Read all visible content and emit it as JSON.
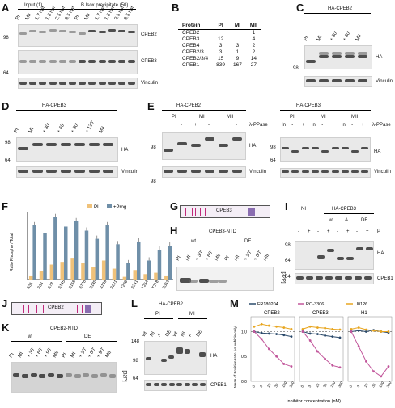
{
  "panels": {
    "A": {
      "label": "A",
      "input_header": "Input (1)",
      "ip_header": "B Isox precipitate (50)",
      "lanes": [
        "PI",
        "MII",
        "1.7 hpf",
        "1.8 hpf",
        "2.5 hpf",
        "3.5 hpf",
        "PI",
        "MII",
        "1.7 hpf",
        "1.8 hpf",
        "2.5 hpf",
        "3.5 hpf"
      ],
      "blots": [
        "CPEB2",
        "CPEB3",
        "Vinculin"
      ],
      "markers": [
        "98",
        "64"
      ]
    },
    "B": {
      "label": "B",
      "columns": [
        "Protein",
        "PI",
        "MI",
        "MII"
      ],
      "rows": [
        [
          "CPEB2",
          "",
          "",
          "1"
        ],
        [
          "CPEB3",
          "12",
          "",
          "4"
        ],
        [
          "CPEB4",
          "3",
          "3",
          "2"
        ],
        [
          "CPEB2/3",
          "3",
          "1",
          "2"
        ],
        [
          "CPEB2/3/4",
          "15",
          "9",
          "14"
        ],
        [
          "CPEB1",
          "839",
          "167",
          "27"
        ]
      ]
    },
    "C": {
      "label": "C",
      "title": "HA-CPEB2",
      "lanes": [
        "PI",
        "MI",
        "+ 30'",
        "+ 60'",
        "MII"
      ],
      "blots": [
        "HA",
        "Vinculin"
      ],
      "markers": [
        "98"
      ]
    },
    "D": {
      "label": "D",
      "title": "HA-CPEB3",
      "lanes": [
        "PI",
        "MI",
        "+ 30'",
        "+ 60'",
        "+ 90'",
        "+ 120'",
        "MII"
      ],
      "blots": [
        "HA",
        "Vinculin"
      ],
      "markers": [
        "98",
        "64"
      ]
    },
    "E": {
      "label": "E",
      "title_left": "HA-CPEB2",
      "title_right": "HA-CPEB3",
      "left_groups": [
        "PI",
        "MI",
        "MII"
      ],
      "right_groups": [
        "PI",
        "MI",
        "MII"
      ],
      "lambda": "λ-PPase",
      "left_signs": [
        "+",
        "-",
        "+",
        "-",
        "+",
        "-"
      ],
      "right_signs": [
        "In",
        "-",
        "+",
        "In",
        "-",
        "+",
        "In",
        "-",
        "+"
      ],
      "blots": [
        "HA",
        "Vinculin"
      ],
      "markers": [
        "98",
        "98",
        "64"
      ]
    },
    "F": {
      "label": "F",
      "legend": [
        "PI",
        "+Prog"
      ],
      "ylabel": "Ratio Phospho / Total",
      "sites": [
        "S31",
        "S33",
        "S78",
        "S145",
        "S158",
        "S178",
        "S185",
        "S189",
        "S221",
        "T238",
        "S241",
        "T254",
        "T278",
        "S353"
      ]
    },
    "G": {
      "label": "G",
      "name": "CPEB3"
    },
    "H": {
      "label": "H",
      "title": "CPEB3-NTD",
      "groups": [
        "wt",
        "DE"
      ],
      "lanes": [
        "PI",
        "MI",
        "+ 30'",
        "+ 60'",
        "MII",
        "PI",
        "MI",
        "+ 30'",
        "+ 60'",
        "MII"
      ],
      "marker": "[32P]"
    },
    "I": {
      "label": "I",
      "groups": [
        "NI",
        "HA-CPEB3"
      ],
      "sub": [
        "wt",
        "A",
        "DE"
      ],
      "signs": [
        "-",
        "+",
        "-",
        "+",
        "-",
        "+",
        "-",
        "+"
      ],
      "pg": "P",
      "blots": [
        "HA",
        "CPEB1"
      ],
      "markers": [
        "98",
        "64",
        "64"
      ]
    },
    "J": {
      "label": "J",
      "name": "CPEB2"
    },
    "K": {
      "label": "K",
      "title": "CPEB2-NTD",
      "groups": [
        "wt",
        "DE"
      ],
      "lanes": [
        "PI",
        "MI",
        "+ 30'",
        "+ 60'",
        "+ 90'",
        "MII",
        "PI",
        "MI",
        "+ 30'",
        "+ 60'",
        "+ 90'",
        "MII"
      ],
      "marker": "[32P]"
    },
    "L": {
      "label": "L",
      "title": "HA-CPEB2",
      "groups": [
        "PI",
        "MI"
      ],
      "lanes": [
        "wt",
        "NI",
        "A",
        "DE",
        "wt",
        "NI",
        "A",
        "DE"
      ],
      "blots": [
        "HA",
        "CPEB1"
      ],
      "markers": [
        "148",
        "98",
        "64"
      ]
    },
    "M": {
      "label": "M",
      "legend": [
        "FR180204",
        "RO-3306",
        "U0126"
      ],
      "subpanels": [
        "CPEB2",
        "CPEB3",
        "H1"
      ],
      "xlabel": "Inhibitor concentration (nM)",
      "ylabel": "Mean of Position ratio (vs vehicle-only)",
      "xticks": [
        "0",
        "3",
        "10",
        "30",
        "100",
        "300"
      ],
      "yticks": [
        "1.0",
        "0.5",
        "0.0"
      ]
    }
  },
  "chart_data": [
    {
      "type": "bar",
      "title": "",
      "ylabel": "Ratio Phospho / Total",
      "categories": [
        "S31",
        "S33",
        "S78",
        "S145",
        "S158",
        "S178",
        "S185",
        "S189",
        "S221",
        "T238",
        "S241",
        "T254",
        "T278",
        "S353"
      ],
      "series": [
        {
          "name": "PI",
          "values": [
            0.3,
            0.6,
            1.1,
            1.3,
            1.6,
            1.2,
            0.9,
            1.4,
            0.8,
            0.2,
            0.7,
            0.4,
            0.5,
            0.3
          ]
        },
        {
          "name": "+Prog",
          "values": [
            4.0,
            3.4,
            4.6,
            3.9,
            4.3,
            3.6,
            3.0,
            4.0,
            2.6,
            1.2,
            2.8,
            1.4,
            2.2,
            2.5
          ]
        }
      ],
      "ylim": [
        0,
        5
      ]
    },
    {
      "type": "line",
      "title": "CPEB2",
      "x": [
        "0",
        "3",
        "10",
        "30",
        "100",
        "300"
      ],
      "series": [
        {
          "name": "FR180204",
          "values": [
            1.0,
            0.97,
            0.96,
            0.95,
            0.93,
            0.9
          ]
        },
        {
          "name": "RO-3306",
          "values": [
            1.0,
            0.85,
            0.65,
            0.5,
            0.35,
            0.3
          ]
        },
        {
          "name": "U0126",
          "values": [
            1.1,
            1.15,
            1.12,
            1.1,
            1.08,
            1.05
          ]
        }
      ],
      "ylim": [
        0,
        1.3
      ]
    },
    {
      "type": "line",
      "title": "CPEB3",
      "x": [
        "0",
        "3",
        "10",
        "30",
        "100",
        "300"
      ],
      "series": [
        {
          "name": "FR180204",
          "values": [
            1.0,
            0.96,
            0.95,
            0.92,
            0.9,
            0.88
          ]
        },
        {
          "name": "RO-3306",
          "values": [
            1.0,
            0.82,
            0.6,
            0.45,
            0.32,
            0.28
          ]
        },
        {
          "name": "U0126",
          "values": [
            1.05,
            1.1,
            1.08,
            1.07,
            1.05,
            1.04
          ]
        }
      ],
      "ylim": [
        0,
        1.3
      ]
    },
    {
      "type": "line",
      "title": "H1",
      "x": [
        "0",
        "3",
        "10",
        "30",
        "100",
        "300"
      ],
      "series": [
        {
          "name": "FR180204",
          "values": [
            1.0,
            1.02,
            1.0,
            1.03,
            1.0,
            0.98
          ]
        },
        {
          "name": "RO-3306",
          "values": [
            1.0,
            0.7,
            0.4,
            0.2,
            0.1,
            0.3
          ]
        },
        {
          "name": "U0126",
          "values": [
            1.05,
            1.08,
            1.04,
            1.02,
            1.0,
            1.0
          ]
        }
      ],
      "ylim": [
        0,
        1.3
      ]
    }
  ],
  "colors": {
    "pi": "#f0c27a",
    "prog": "#6f8fa8",
    "fr": "#2b4a6b",
    "ro": "#c2569b",
    "u0": "#e8a620"
  }
}
